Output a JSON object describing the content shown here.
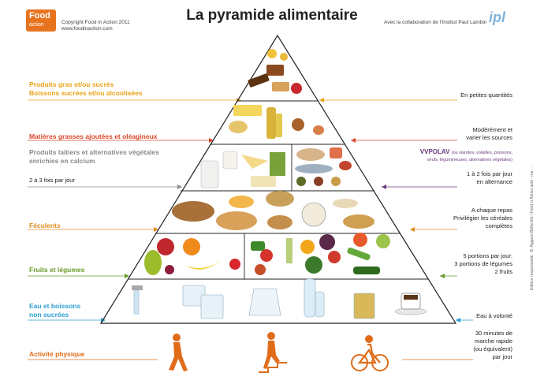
{
  "header": {
    "logo_line1": "Food",
    "logo_line2": "action",
    "copyright_line1": "Copyright Food in Action 2011",
    "copyright_line2": "www.foodinaction.com",
    "title": "La pyramide alimentaire",
    "collab": "Avec la collaboration de l'Institut Paul Lambin",
    "partner_logo": "ipl"
  },
  "left_labels": {
    "sweets_line1": "Produits gras et/ou sucrés",
    "sweets_line2": "Boissons sucrées et/ou alcoolisées",
    "fats": "Matières grasses ajoutées et oléagineux",
    "dairy_line1": "Produits laitiers et alternatives végétales",
    "dairy_line2": "enrichies en calcium",
    "dairy_freq": "2 à 3 fois par jour",
    "starch": "Féculents",
    "fruitveg": "Fruits et légumes",
    "water_line1": "Eau et boissons",
    "water_line2": "non sucrées",
    "activity": "Activité physique"
  },
  "right_labels": {
    "sweets": "En petites quantités",
    "fats_line1": "Modérément et",
    "fats_line2": "varier les sources",
    "vvpolav": "VVPOLAV",
    "vvpolav_detail1": "(ou viandes, volailles, poissons,",
    "vvpolav_detail2": "oeufs, légumineuses, alternatives végétales)",
    "protein_line1": "1 à 2 fois par jour",
    "protein_line2": "en alternance",
    "starch_line1": "A chaque repas",
    "starch_line2": "Privilégier les céréales",
    "starch_line3": "complètes",
    "fv_line1": "5 portions par jour:",
    "fv_line2": "3 portions de légumes",
    "fv_line3": "2 fruits",
    "water": "Eau à volonté",
    "act_line1": "30 minutes de",
    "act_line2": "marche rapide",
    "act_line3": "(ou équivalent)",
    "act_line4": "par jour"
  },
  "side_credit": "Editeur responsable : B. Aggoun Bellemlih / Food in Action asbl - rue ...",
  "colors": {
    "orange": "#e8731f",
    "sweets": "#e8a317",
    "fats": "#d9472b",
    "dairy": "#8a8a8a",
    "protein": "#6b3a7d",
    "starch": "#e08a1e",
    "fruitveg": "#6a9a2a",
    "water": "#2c9fd0",
    "activity": "#e06c1a"
  },
  "icons": {
    "logo": "food-in-action-logo",
    "partner": "ipl-logo",
    "walker": "walking-person-icon",
    "stairs": "stairs-climber-icon",
    "cyclist": "cyclist-icon"
  }
}
